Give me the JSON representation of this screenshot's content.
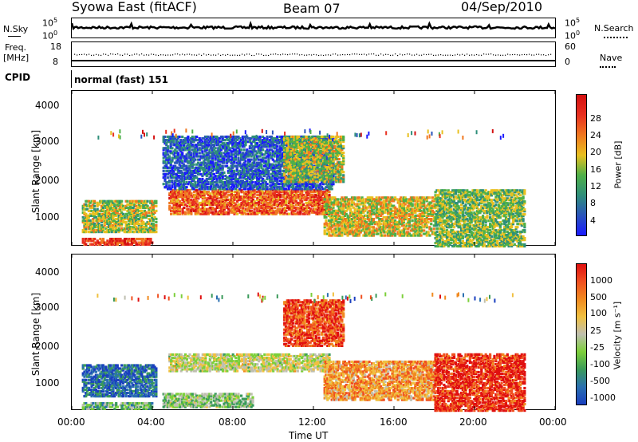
{
  "header": {
    "station": "Syowa East (fitACF)",
    "beam": "Beam 07",
    "date": "04/Sep/2010"
  },
  "top_panels": {
    "nsky_label": "N.Sky",
    "nsearch_label": "N.Search",
    "nsky_top": "10^5",
    "nsky_bottom": "10^0",
    "nsearch_top": "10^5",
    "nsearch_bottom": "10^0",
    "freq_label_1": "Freq.",
    "freq_label_2": "[MHz]",
    "freq_top": "18",
    "freq_bottom": "8",
    "nave_label": "Nave",
    "nave_top": "60",
    "nave_bottom": "0",
    "cpid_label": "CPID",
    "cpid_value": "normal (fast) 151"
  },
  "chart_data": [
    {
      "type": "heatmap",
      "name": "power",
      "ylabel": "Slant Range [km]",
      "ylim": [
        200,
        4500
      ],
      "y_ticks": [
        "1000",
        "2000",
        "3000",
        "4000"
      ],
      "colorbar_label": "Power [dB]",
      "colorbar_ticks": [
        "4",
        "8",
        "12",
        "16",
        "20",
        "24",
        "28"
      ],
      "colorbar_colors": [
        "#1a1aff",
        "#2a55bb",
        "#2f8f7a",
        "#4fb048",
        "#e8c020",
        "#f07820",
        "#e83020",
        "#d41010"
      ],
      "echo_regions": [
        {
          "t0": 0.5,
          "t1": 4.2,
          "r0": 600,
          "r1": 1500,
          "color_level": 0.5
        },
        {
          "t0": 0.5,
          "t1": 4.0,
          "r0": 250,
          "r1": 450,
          "color_level": 0.8
        },
        {
          "t0": 4.8,
          "t1": 12.8,
          "r0": 1100,
          "r1": 1800,
          "color_level": 0.75
        },
        {
          "t0": 4.5,
          "t1": 13.0,
          "r0": 1800,
          "r1": 3300,
          "color_level": 0.2
        },
        {
          "t0": 10.5,
          "t1": 13.5,
          "r0": 2000,
          "r1": 3300,
          "color_level": 0.5
        },
        {
          "t0": 12.5,
          "t1": 18.0,
          "r0": 500,
          "r1": 1600,
          "color_level": 0.55
        },
        {
          "t0": 18.0,
          "t1": 22.5,
          "r0": 200,
          "r1": 1800,
          "color_level": 0.45
        }
      ]
    },
    {
      "type": "heatmap",
      "name": "velocity",
      "ylabel": "Slant Range [km]",
      "xlabel": "Time UT",
      "x_ticks": [
        "00:00",
        "04:00",
        "08:00",
        "12:00",
        "16:00",
        "20:00",
        "00:00"
      ],
      "ylim": [
        200,
        4500
      ],
      "y_ticks": [
        "1000",
        "2000",
        "3000",
        "4000"
      ],
      "colorbar_label": "Velocity [m s⁻¹]",
      "colorbar_ticks": [
        "1000",
        "500",
        "100",
        "25",
        "-25",
        "-100",
        "-500",
        "-1000"
      ],
      "colorbar_colors": [
        "#1a3fbf",
        "#2a6fb0",
        "#3a9a5a",
        "#7ccf3a",
        "#bfbfb0",
        "#f0c040",
        "#f08a20",
        "#f05020",
        "#e01010"
      ],
      "echo_regions": [
        {
          "t0": 0.5,
          "t1": 4.2,
          "r0": 600,
          "r1": 1500,
          "color_level": 0.85
        },
        {
          "t0": 0.5,
          "t1": 4.0,
          "r0": 250,
          "r1": 450,
          "color_level": 0.65
        },
        {
          "t0": 4.8,
          "t1": 12.8,
          "r0": 1300,
          "r1": 1800,
          "color_level": 0.5
        },
        {
          "t0": 4.5,
          "t1": 9.0,
          "r0": 300,
          "r1": 700,
          "color_level": 0.6
        },
        {
          "t0": 10.5,
          "t1": 13.5,
          "r0": 2000,
          "r1": 3300,
          "color_level": 0.15
        },
        {
          "t0": 12.5,
          "t1": 18.0,
          "r0": 500,
          "r1": 1600,
          "color_level": 0.3
        },
        {
          "t0": 18.0,
          "t1": 22.5,
          "r0": 200,
          "r1": 1800,
          "color_level": 0.1
        }
      ]
    }
  ]
}
